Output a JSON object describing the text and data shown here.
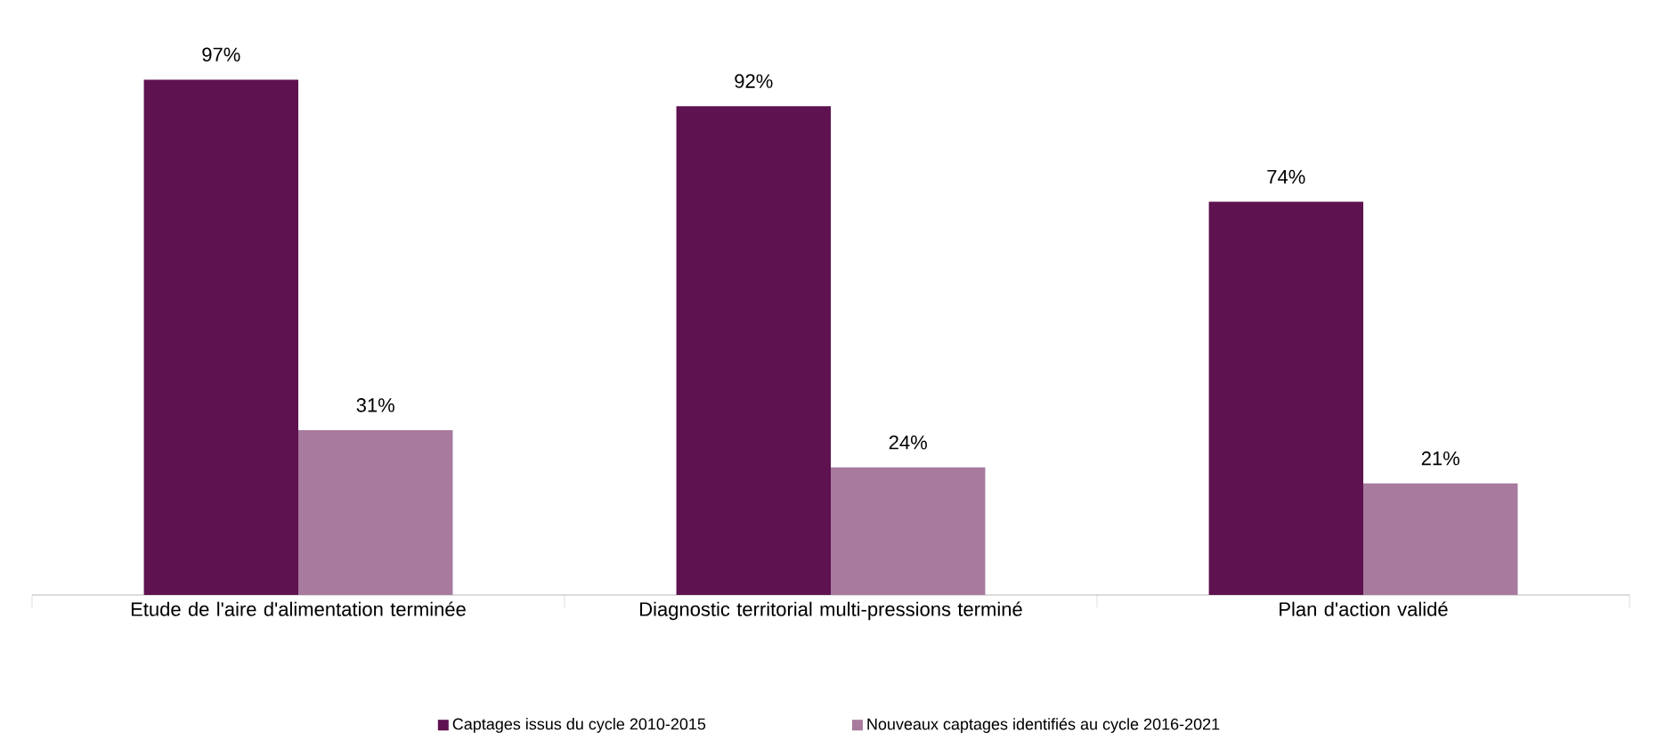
{
  "chart_data": {
    "type": "bar",
    "categories": [
      "Etude de l'aire d'alimentation terminée",
      "Diagnostic territorial multi-pressions terminé",
      "Plan d'action validé"
    ],
    "series": [
      {
        "name": "Captages issus du cycle 2010-2015",
        "color": "#5e1250",
        "values": [
          97,
          92,
          74
        ],
        "value_labels": [
          "97%",
          "92%",
          "74%"
        ]
      },
      {
        "name": "Nouveaux captages identifiés au cycle 2016-2021",
        "color": "#a77a9e",
        "values": [
          31,
          24,
          21
        ],
        "value_labels": [
          "31%",
          "24%",
          "21%"
        ]
      }
    ],
    "legend": "bottom"
  }
}
